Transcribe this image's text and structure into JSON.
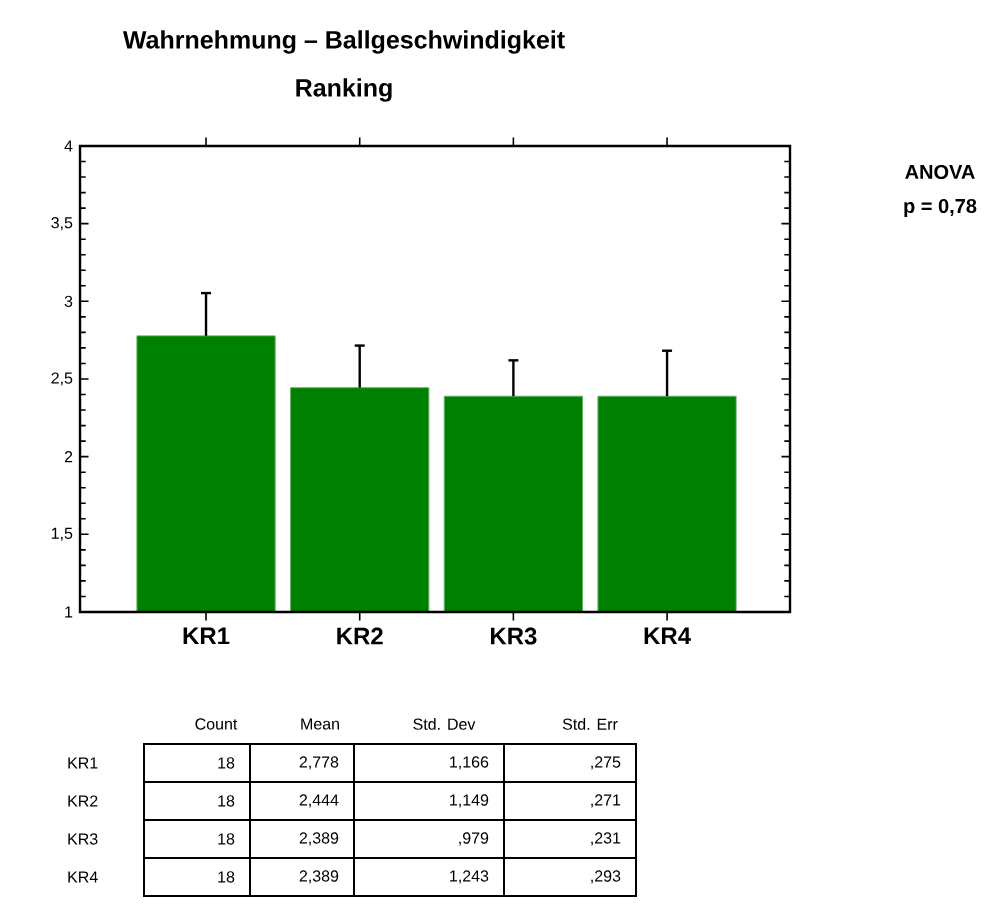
{
  "chart_data": {
    "type": "bar",
    "title": "Wahrnehmung – Ballgeschwindigkeit",
    "subtitle": "Ranking",
    "categories": [
      "KR1",
      "KR2",
      "KR3",
      "KR4"
    ],
    "values": [
      2.778,
      2.444,
      2.389,
      2.389
    ],
    "errors": [
      [
        2.778,
        3.053
      ],
      [
        2.444,
        2.715
      ],
      [
        2.389,
        2.62
      ],
      [
        2.389,
        2.682
      ]
    ],
    "color": "#008000",
    "ylim": [
      1,
      4
    ],
    "yticks": [
      1,
      {
        "value": 1.5,
        "label": "1,5"
      },
      2,
      {
        "value": 2.5,
        "label": "2,5"
      },
      3,
      {
        "value": 3.5,
        "label": "3,5"
      },
      4
    ],
    "grid": false,
    "annotations": [
      "ANOVA",
      "p = 0,78",
      "Count",
      "Mean",
      "Std. Dev",
      "Std. Err",
      "18",
      "2,778",
      "1,166",
      ",275",
      "18",
      "2,444",
      "1,149",
      ",271",
      "18",
      "2,389",
      ",979",
      ",231",
      "18",
      "2,389",
      "1,243",
      ",293"
    ]
  }
}
